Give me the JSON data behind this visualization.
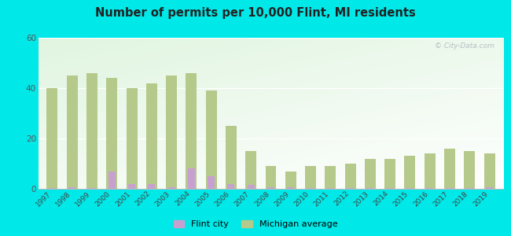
{
  "years": [
    1997,
    1998,
    1999,
    2000,
    2001,
    2002,
    2003,
    2004,
    2005,
    2006,
    2007,
    2008,
    2009,
    2010,
    2011,
    2012,
    2013,
    2014,
    2015,
    2016,
    2017,
    2018,
    2019
  ],
  "michigan_avg": [
    40,
    45,
    46,
    44,
    40,
    42,
    45,
    46,
    39,
    25,
    15,
    9,
    7,
    9,
    9,
    10,
    12,
    12,
    13,
    14,
    16,
    15,
    14
  ],
  "flint_city": [
    0.3,
    0.5,
    0.2,
    7,
    2,
    2,
    0.5,
    8,
    5,
    2,
    1.5,
    0.5,
    0.5,
    0.3,
    0.2,
    0.2,
    0.3,
    0.3,
    0.2,
    0.3,
    0.3,
    0.2,
    0.5
  ],
  "title": "Number of permits per 10,000 Flint, MI residents",
  "michigan_color": "#b5c98a",
  "flint_color": "#c8a0d0",
  "outer_bg": "#00e8e8",
  "ylim": [
    0,
    60
  ],
  "yticks": [
    0,
    20,
    40,
    60
  ],
  "legend_flint": "Flint city",
  "legend_michigan": "Michigan average",
  "watermark": "© City-Data.com"
}
